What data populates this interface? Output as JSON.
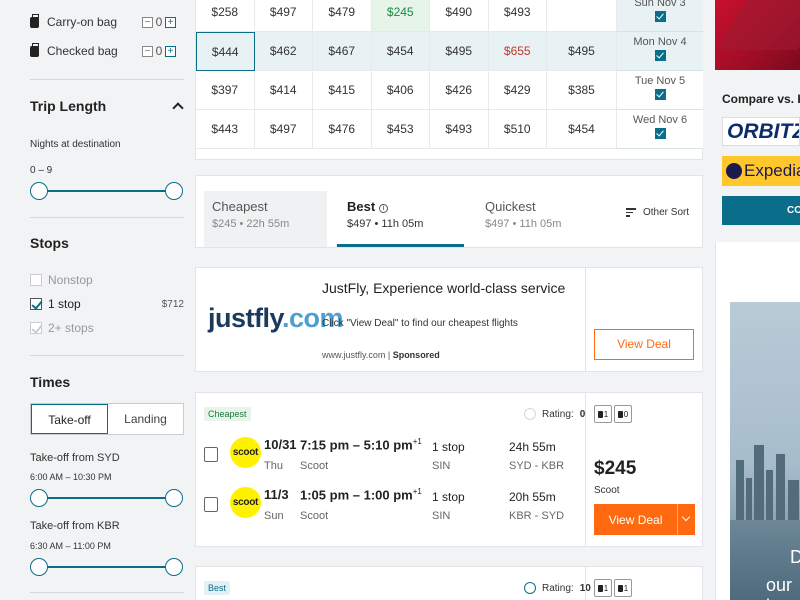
{
  "sidebar": {
    "bags": [
      {
        "label": "Carry-on bag",
        "value": "0",
        "minus": "−",
        "plus": "+"
      },
      {
        "label": "Checked bag",
        "value": "0",
        "minus": "−",
        "plus": "+"
      }
    ],
    "trip_length": {
      "title": "Trip Length",
      "sub": "Nights at destination",
      "range": "0 – 9"
    },
    "stops": {
      "title": "Stops",
      "items": [
        {
          "label": "Nonstop",
          "price": "",
          "state": "off"
        },
        {
          "label": "1 stop",
          "price": "$712",
          "state": "on"
        },
        {
          "label": "2+ stops",
          "price": "",
          "state": "disabled"
        }
      ]
    },
    "times": {
      "title": "Times",
      "tabs": [
        "Take-off",
        "Landing"
      ],
      "takeoff_syd_label": "Take-off from SYD",
      "takeoff_syd_range": "6:00 AM – 10:30 PM",
      "takeoff_kbr_label": "Take-off from KBR",
      "takeoff_kbr_range": "6:30 AM – 11:00 PM"
    }
  },
  "matrix": {
    "rows": [
      {
        "date": "Sun Nov 3",
        "prices": [
          "$258",
          "$497",
          "$479",
          "$245",
          "$490",
          "$493",
          ""
        ],
        "highlight": true
      },
      {
        "date": "Mon Nov 4",
        "prices": [
          "$444",
          "$462",
          "$467",
          "$454",
          "$495",
          "$655",
          "$495"
        ],
        "highlight": true
      },
      {
        "date": "Tue Nov 5",
        "prices": [
          "$397",
          "$414",
          "$415",
          "$406",
          "$426",
          "$429",
          "$385"
        ],
        "highlight": false
      },
      {
        "date": "Wed Nov 6",
        "prices": [
          "$443",
          "$497",
          "$476",
          "$453",
          "$493",
          "$510",
          "$454"
        ],
        "highlight": false
      }
    ]
  },
  "sort": {
    "tabs": [
      {
        "label": "Cheapest",
        "sub": "$245 • 22h 55m"
      },
      {
        "label": "Best",
        "sub": "$497 • 11h 05m"
      },
      {
        "label": "Quickest",
        "sub": "$497 • 11h 05m"
      }
    ],
    "info_icon": "i",
    "other": "Other Sort"
  },
  "ad": {
    "logo_a": "justfly",
    "logo_b": ".com",
    "title": "JustFly, Experience world-class service",
    "desc": "Click \"View Deal\" to find our cheapest flights",
    "source": "www.justfly.com",
    "sponsored": "Sponsored",
    "button": "View Deal"
  },
  "results": [
    {
      "tag": "Cheapest",
      "rating_label": "Rating:",
      "rating": "0",
      "carry": "1",
      "checked": "0",
      "legs": [
        {
          "logo": "scoot",
          "date": "10/31",
          "dow": "Thu",
          "times": "7:15 pm – 5:10 pm",
          "plus": "+1",
          "airline": "Scoot",
          "stops": "1 stop",
          "via": "SIN",
          "duration": "24h 55m",
          "route": "SYD - KBR"
        },
        {
          "logo": "scoot",
          "date": "11/3",
          "dow": "Sun",
          "times": "1:05 pm – 1:00 pm",
          "plus": "+1",
          "airline": "Scoot",
          "stops": "1 stop",
          "via": "SIN",
          "duration": "20h 55m",
          "route": "KBR - SYD"
        }
      ],
      "price": "$245",
      "price_airline": "Scoot",
      "button": "View Deal"
    },
    {
      "tag": "Best",
      "rating_label": "Rating:",
      "rating": "10",
      "carry": "1",
      "checked": "1"
    }
  ],
  "right": {
    "compare": "Compare vs. KAYAK",
    "orbitz": "ORBITZ",
    "expedia": "Expedia",
    "compare_btn": "COMPARE",
    "ad_text_1": "D",
    "ad_text_2": "our lo"
  }
}
